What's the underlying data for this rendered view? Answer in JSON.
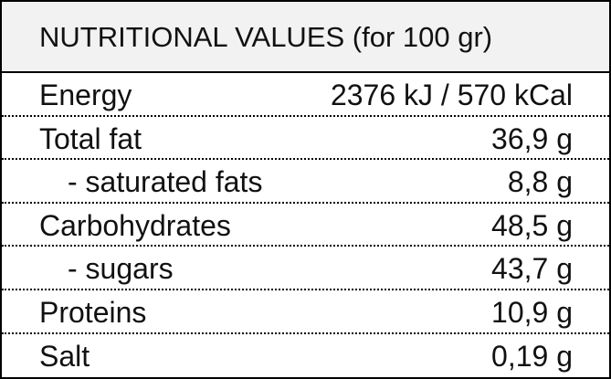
{
  "header": {
    "title": "NUTRITIONAL VALUES (for 100 gr)"
  },
  "table": {
    "rows": [
      [
        "Energy",
        "2376 kJ / 570 kCal"
      ],
      [
        "Total fat",
        "36,9 g"
      ],
      [
        "- saturated fats",
        "8,8 g"
      ],
      [
        "Carbohydrates",
        "48,5 g"
      ],
      [
        "- sugars",
        "43,7 g"
      ],
      [
        "Proteins",
        "10,9 g"
      ],
      [
        "Salt",
        "0,19 g"
      ]
    ]
  }
}
